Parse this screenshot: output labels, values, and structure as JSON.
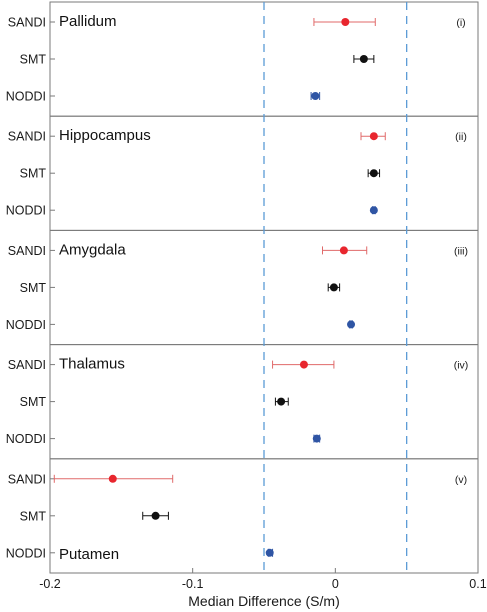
{
  "chart_data": {
    "type": "scatter",
    "subtype": "forest-plot-with-horizontal-error-bars",
    "xlabel": "Median Difference (S/m)",
    "xlim": [
      -0.2,
      0.1
    ],
    "xticks": [
      "-0.2",
      "-0.1",
      "0",
      "0.1"
    ],
    "reference_lines": {
      "x": [
        -0.05,
        0.05
      ],
      "style": "dashed",
      "color": "#5b9bd5"
    },
    "series_colors": {
      "SANDI": "#e8262e",
      "SMT": "#111111",
      "NODDI": "#2f55a4"
    },
    "errorbar_colors": {
      "SANDI": "#e06a6a",
      "SMT": "#111111",
      "NODDI": "#2f55a4"
    },
    "categories": [
      "SANDI",
      "SMT",
      "NODDI"
    ],
    "panels": [
      {
        "title": "Pallidum",
        "roman": "(i)",
        "title_position": "top-left",
        "points": [
          {
            "model": "SANDI",
            "value": 0.007,
            "low": -0.015,
            "high": 0.028
          },
          {
            "model": "SMT",
            "value": 0.02,
            "low": 0.013,
            "high": 0.027
          },
          {
            "model": "NODDI",
            "value": -0.014,
            "low": -0.017,
            "high": -0.011
          }
        ]
      },
      {
        "title": "Hippocampus",
        "roman": "(ii)",
        "title_position": "top-left",
        "points": [
          {
            "model": "SANDI",
            "value": 0.027,
            "low": 0.018,
            "high": 0.035
          },
          {
            "model": "SMT",
            "value": 0.027,
            "low": 0.023,
            "high": 0.031
          },
          {
            "model": "NODDI",
            "value": 0.027,
            "low": 0.026,
            "high": 0.028
          }
        ]
      },
      {
        "title": "Amygdala",
        "roman": "(iii)",
        "title_position": "top-left",
        "points": [
          {
            "model": "SANDI",
            "value": 0.006,
            "low": -0.009,
            "high": 0.022
          },
          {
            "model": "SMT",
            "value": -0.001,
            "low": -0.005,
            "high": 0.003
          },
          {
            "model": "NODDI",
            "value": 0.011,
            "low": 0.01,
            "high": 0.012
          }
        ]
      },
      {
        "title": "Thalamus",
        "roman": "(iv)",
        "title_position": "top-left",
        "points": [
          {
            "model": "SANDI",
            "value": -0.022,
            "low": -0.044,
            "high": -0.001
          },
          {
            "model": "SMT",
            "value": -0.038,
            "low": -0.042,
            "high": -0.033
          },
          {
            "model": "NODDI",
            "value": -0.013,
            "low": -0.015,
            "high": -0.011
          }
        ]
      },
      {
        "title": "Putamen",
        "roman": "(v)",
        "title_position": "bottom-left",
        "points": [
          {
            "model": "SANDI",
            "value": -0.156,
            "low": -0.197,
            "high": -0.114
          },
          {
            "model": "SMT",
            "value": -0.126,
            "low": -0.135,
            "high": -0.117
          },
          {
            "model": "NODDI",
            "value": -0.046,
            "low": -0.047,
            "high": -0.044
          }
        ]
      }
    ]
  }
}
